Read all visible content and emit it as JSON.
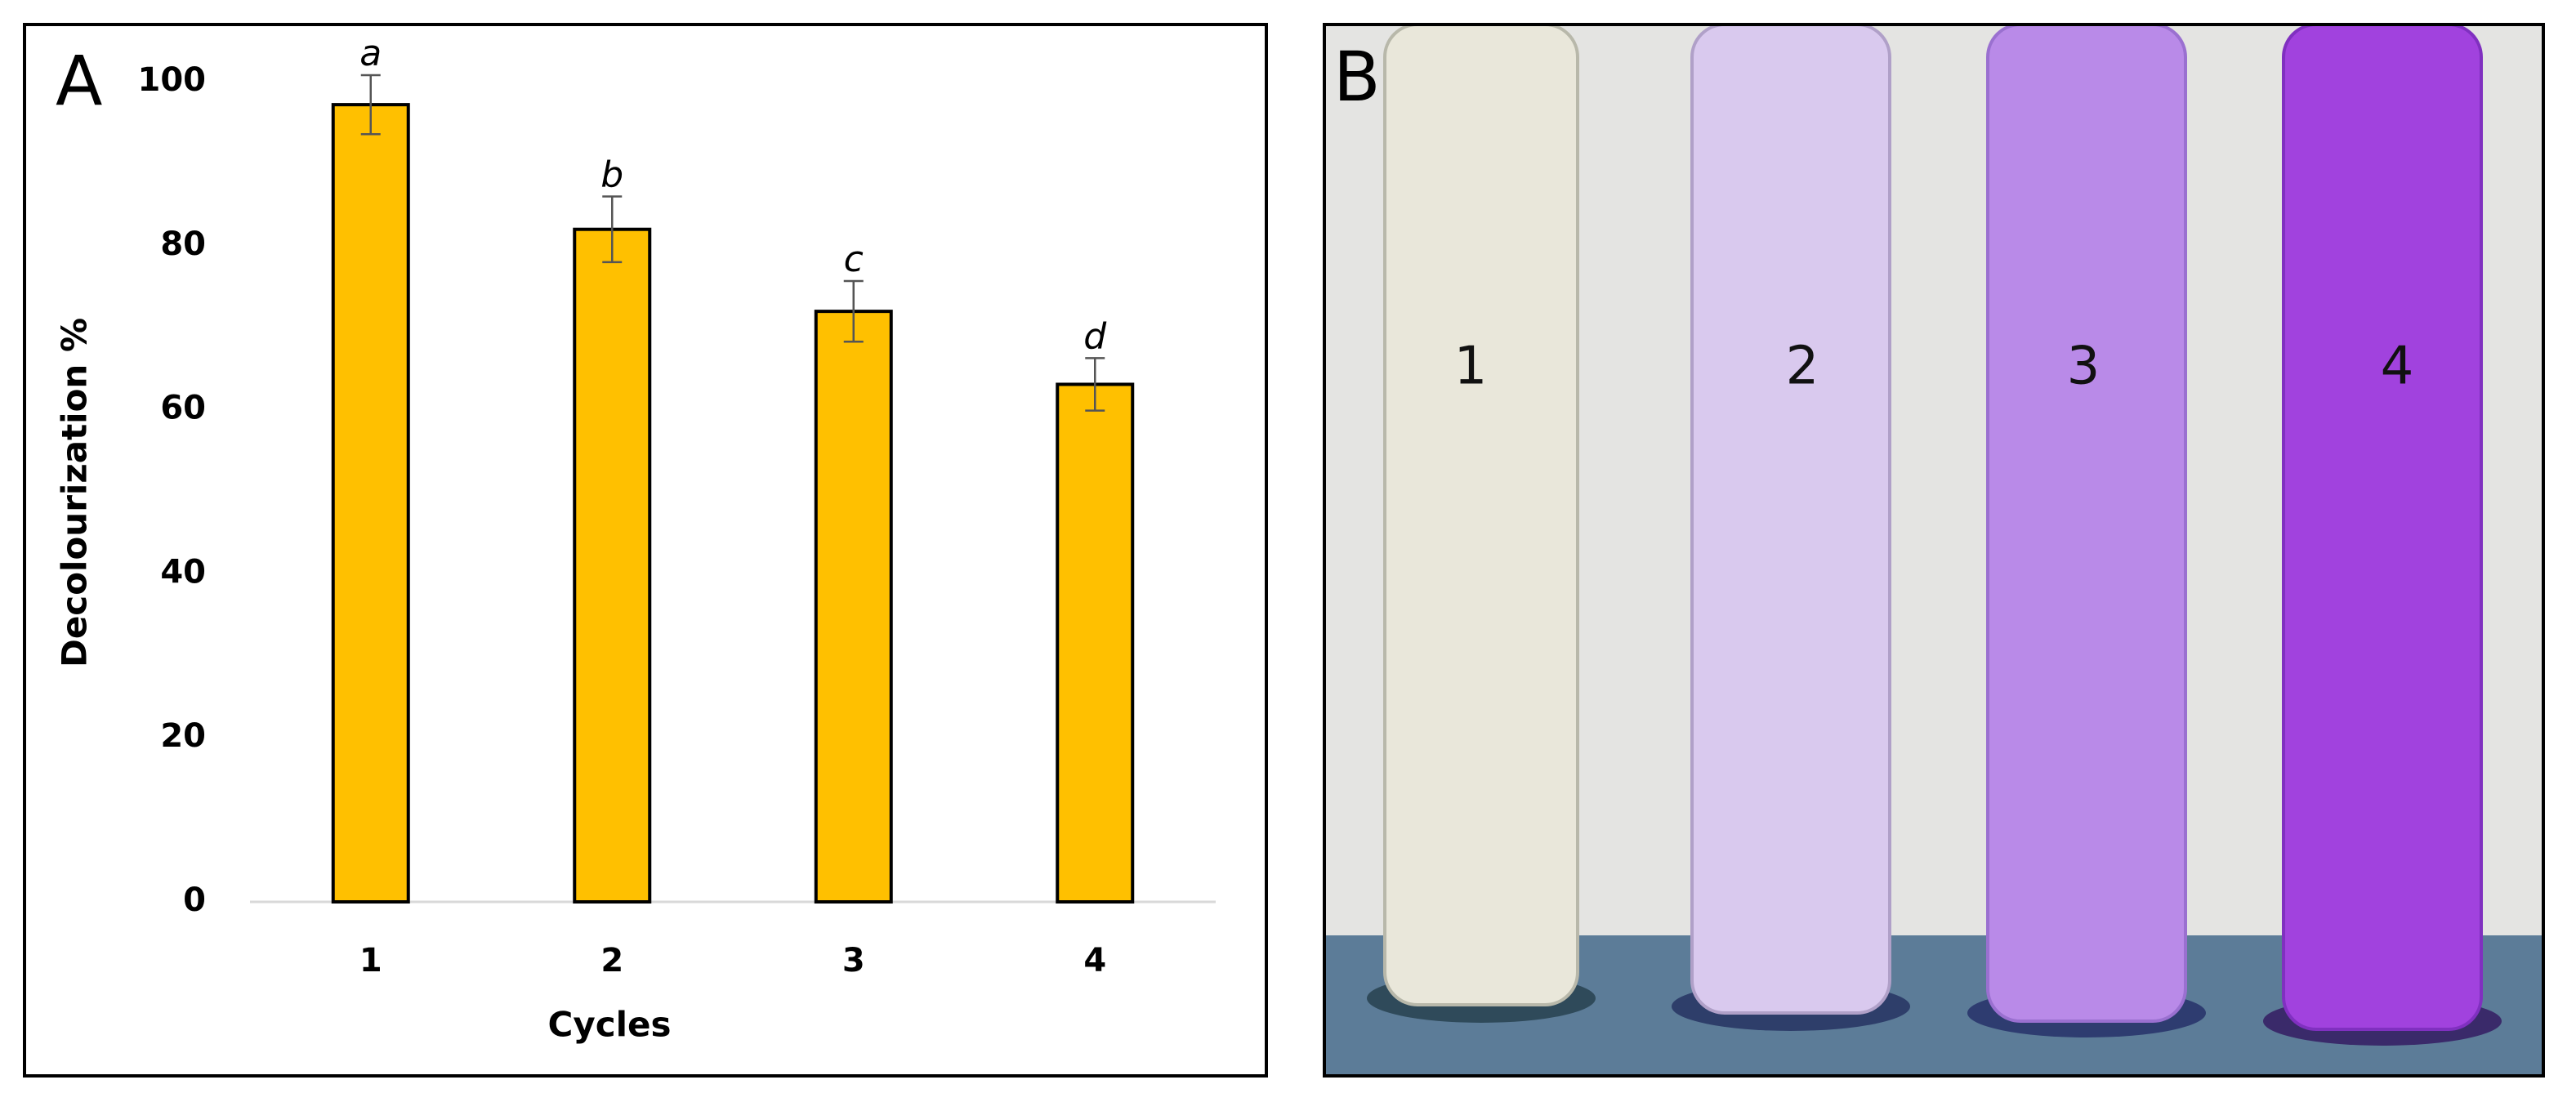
{
  "chart_data": {
    "type": "bar",
    "panel_label": "A",
    "categories": [
      "1",
      "2",
      "3",
      "4"
    ],
    "values": [
      97.2,
      82.0,
      72.0,
      63.1
    ],
    "errors": [
      3.6,
      4.0,
      3.7,
      3.2
    ],
    "annotations": [
      "a",
      "b",
      "c",
      "d"
    ],
    "color": "#ffc000",
    "x_label": "Cycles",
    "y_label": "Decolourization %",
    "ylim": [
      0,
      100
    ],
    "yticks": [
      0,
      20,
      40,
      60,
      80,
      100
    ],
    "grid": false
  },
  "photo": {
    "panel_label": "B",
    "tube_labels": [
      "1",
      "2",
      "3",
      "4"
    ]
  }
}
